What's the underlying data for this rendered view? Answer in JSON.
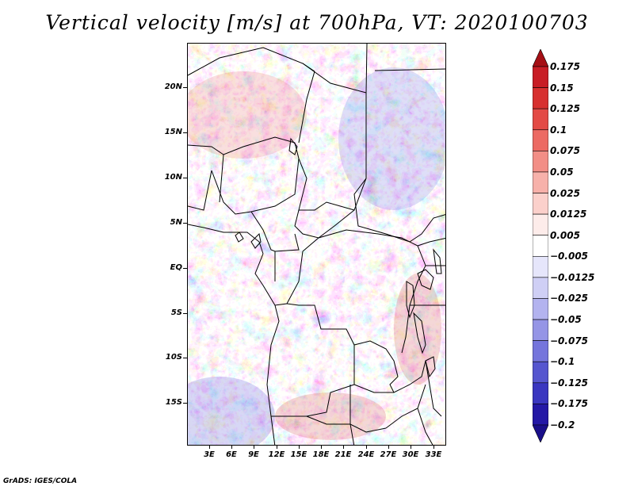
{
  "title": "Vertical velocity [m/s] at 700hPa, VT: 2020100703",
  "footer": "GrADS: IGES/COLA",
  "map": {
    "lat_labels": [
      "20N",
      "15N",
      "10N",
      "5N",
      "EQ",
      "5S",
      "10S",
      "15S"
    ],
    "lon_labels": [
      "3E",
      "6E",
      "9E",
      "12E",
      "15E",
      "18E",
      "21E",
      "24E",
      "27E",
      "30E",
      "33E"
    ],
    "field_colors": {
      "strong_down": "#b2182b",
      "down": "#ef8a8a",
      "weak_down": "#fbd5d5",
      "neutral": "#ffffff",
      "weak_up": "#d5d5fb",
      "up": "#8a8aef",
      "strong_up": "#2b18b2"
    }
  },
  "colorbar": {
    "labels": [
      "0.175",
      "0.15",
      "0.125",
      "0.1",
      "0.075",
      "0.05",
      "0.025",
      "0.0125",
      "0.005",
      "−0.005",
      "−0.0125",
      "−0.025",
      "−0.05",
      "−0.075",
      "−0.1",
      "−0.125",
      "−0.175",
      "−0.2"
    ],
    "colors": [
      "#a50f15",
      "#c81d25",
      "#d7302f",
      "#e34a45",
      "#ec6a63",
      "#f28e86",
      "#f7b1aa",
      "#fbd0cb",
      "#fdecea",
      "#ffffff",
      "#e6e6fb",
      "#cfcff5",
      "#b3b3ef",
      "#9595e6",
      "#7575dc",
      "#5656cf",
      "#3a36c0",
      "#2418a6",
      "#1a0f8a"
    ]
  }
}
